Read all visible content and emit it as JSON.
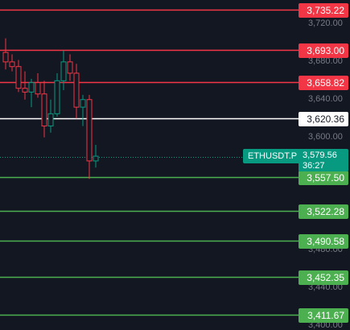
{
  "symbol": "ETHUSDT.P",
  "current_price": "3,579.56",
  "countdown": "36:27",
  "axis_ticks": [
    "3,720.00",
    "3,680.00",
    "3,640.00",
    "3,600.00",
    "3,480.00",
    "3,440.00",
    "3,400.00"
  ],
  "levels": [
    {
      "label": "3,735.22",
      "price": 3735.22,
      "color": "red"
    },
    {
      "label": "3,693.00",
      "price": 3693.0,
      "color": "red"
    },
    {
      "label": "3,658.82",
      "price": 3658.82,
      "color": "red"
    },
    {
      "label": "3,620.36",
      "price": 3620.36,
      "color": "white"
    },
    {
      "label": "3,557.50",
      "price": 3557.5,
      "color": "green"
    },
    {
      "label": "3,522.28",
      "price": 3522.28,
      "color": "green"
    },
    {
      "label": "3,490.58",
      "price": 3490.58,
      "color": "green"
    },
    {
      "label": "3,452.35",
      "price": 3452.35,
      "color": "green"
    },
    {
      "label": "3,411.67",
      "price": 3411.67,
      "color": "green"
    }
  ],
  "colors": {
    "red": "#f23645",
    "white": "#ffffff",
    "green": "#4caf50",
    "up": "#089981",
    "down": "#f23645",
    "background": "#131722"
  },
  "chart_data": {
    "type": "candlestick",
    "candles": [
      {
        "o": 3690,
        "h": 3705,
        "l": 3672,
        "c": 3680
      },
      {
        "o": 3680,
        "h": 3688,
        "l": 3670,
        "c": 3675
      },
      {
        "o": 3675,
        "h": 3682,
        "l": 3648,
        "c": 3652
      },
      {
        "o": 3652,
        "h": 3670,
        "l": 3640,
        "c": 3648
      },
      {
        "o": 3648,
        "h": 3662,
        "l": 3632,
        "c": 3658
      },
      {
        "o": 3658,
        "h": 3668,
        "l": 3642,
        "c": 3646
      },
      {
        "o": 3646,
        "h": 3660,
        "l": 3600,
        "c": 3612
      },
      {
        "o": 3612,
        "h": 3640,
        "l": 3605,
        "c": 3625
      },
      {
        "o": 3625,
        "h": 3668,
        "l": 3622,
        "c": 3660
      },
      {
        "o": 3660,
        "h": 3692,
        "l": 3650,
        "c": 3680
      },
      {
        "o": 3680,
        "h": 3688,
        "l": 3660,
        "c": 3668
      },
      {
        "o": 3668,
        "h": 3678,
        "l": 3620,
        "c": 3632
      },
      {
        "o": 3632,
        "h": 3645,
        "l": 3612,
        "c": 3640
      },
      {
        "o": 3640,
        "h": 3645,
        "l": 3556,
        "c": 3575
      },
      {
        "o": 3575,
        "h": 3592,
        "l": 3568,
        "c": 3580
      }
    ]
  }
}
